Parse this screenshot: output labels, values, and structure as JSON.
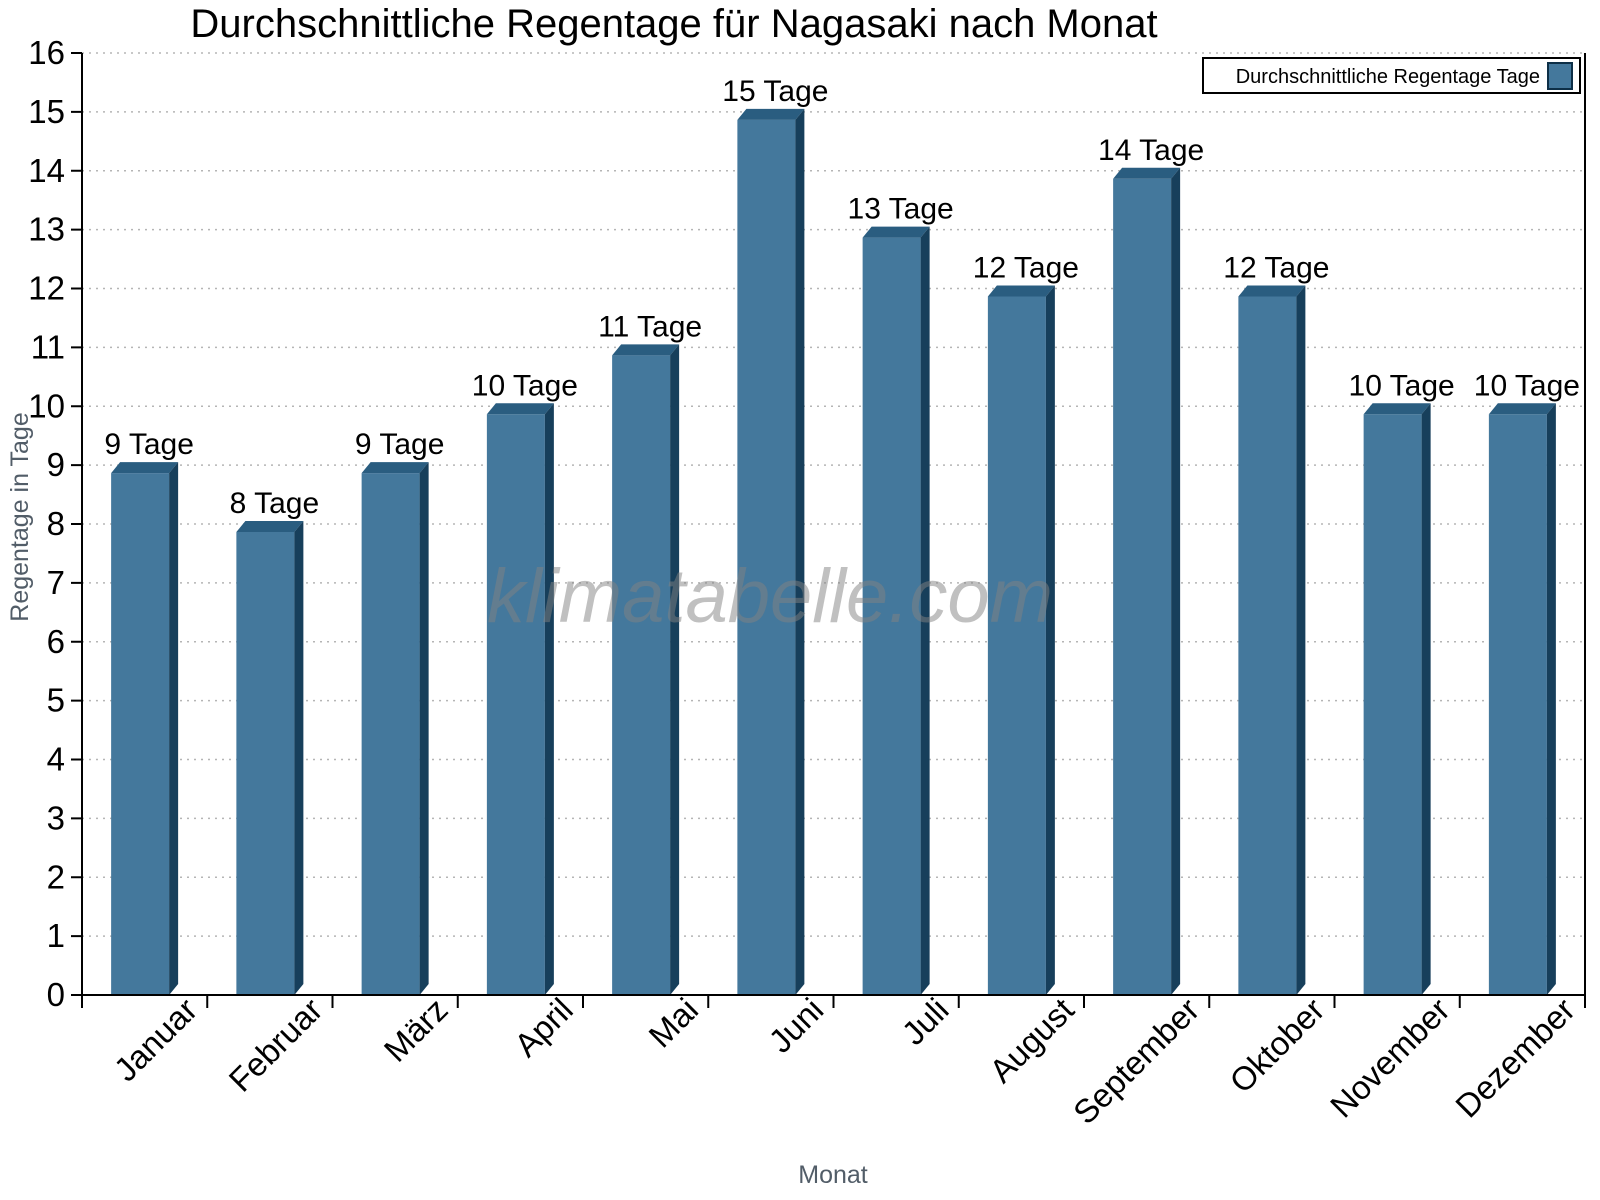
{
  "chart_data": {
    "type": "bar",
    "title": "Durchschnittliche Regentage für Nagasaki nach Monat",
    "xlabel": "Monat",
    "ylabel": "Regentage in Tage",
    "categories": [
      "Januar",
      "Februar",
      "März",
      "April",
      "Mai",
      "Juni",
      "Juli",
      "August",
      "September",
      "Oktober",
      "November",
      "Dezember"
    ],
    "values": [
      9,
      8,
      9,
      10,
      11,
      15,
      13,
      12,
      14,
      12,
      10,
      10
    ],
    "point_labels": [
      "9 Tage",
      "8 Tage",
      "9 Tage",
      "10 Tage",
      "11 Tage",
      "15 Tage",
      "13 Tage",
      "12 Tage",
      "14 Tage",
      "12 Tage",
      "10 Tage",
      "10 Tage"
    ],
    "ylim": [
      0,
      16
    ],
    "y_tick_step": 1,
    "grid": "horizontal-dotted",
    "legend": {
      "label": "Durchschnittliche Regentage Tage",
      "position": "top-right"
    },
    "watermark": "klimatabelle.com",
    "colors": {
      "bar_face": "#44789c",
      "bar_top": "#2a5d80",
      "bar_side": "#173f5b",
      "swatch_border": "#0d2f47",
      "grid_line": "#b5b5b5",
      "axis": "#000000",
      "axis_title": "#525d68",
      "label_text": "#000000",
      "legend_border": "#000000",
      "background": "#ffffff"
    }
  }
}
